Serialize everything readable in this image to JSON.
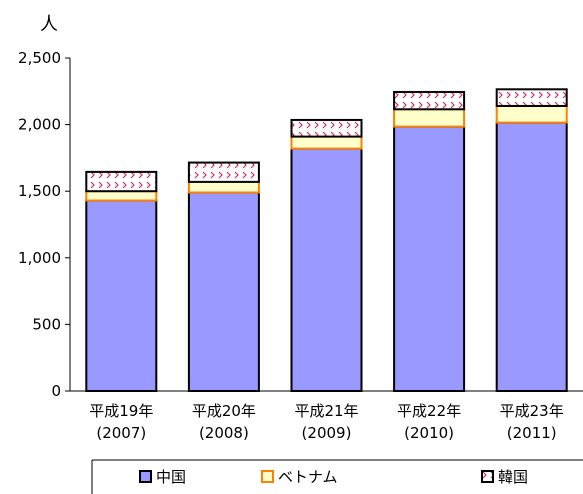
{
  "chart_data": {
    "type": "bar",
    "stacked": true,
    "ylabel": "人",
    "ylim": [
      0,
      2500
    ],
    "yticks": [
      0,
      500,
      1000,
      1500,
      2000,
      2500
    ],
    "ytick_labels": [
      "0",
      "500",
      "1,000",
      "1,500",
      "2,000",
      "2,500"
    ],
    "categories": [
      {
        "line1": "平成19年",
        "line2": "(2007)"
      },
      {
        "line1": "平成20年",
        "line2": "(2008)"
      },
      {
        "line1": "平成21年",
        "line2": "(2009)"
      },
      {
        "line1": "平成22年",
        "line2": "(2010)"
      },
      {
        "line1": "平成23年",
        "line2": "(2011)"
      }
    ],
    "series": [
      {
        "name": "中国",
        "values": [
          1430,
          1490,
          1820,
          1985,
          2015
        ],
        "fill": "#9999ff",
        "stroke": "#000000"
      },
      {
        "name": "ベトナム",
        "values": [
          70,
          80,
          90,
          130,
          125
        ],
        "fill": "#ffffcc",
        "stroke": "#ff8000"
      },
      {
        "name": "韓国",
        "values": [
          145,
          145,
          125,
          130,
          125
        ],
        "fill": "#ffffff",
        "stroke": "#000000",
        "pattern": "checked"
      }
    ],
    "grid": false,
    "legend_position": "bottom"
  },
  "colors": {
    "background": "#ffffff",
    "axis": "#000000",
    "pattern_mark": "#cc3366"
  }
}
